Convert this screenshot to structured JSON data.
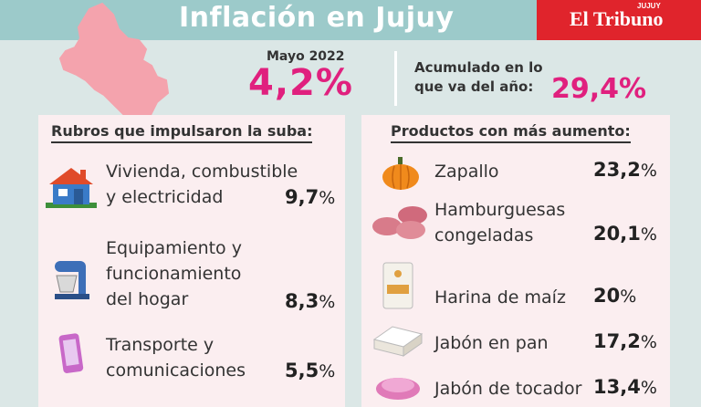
{
  "header": {
    "title": "Inflación en Jujuy"
  },
  "brand": {
    "name": "El Tribuno",
    "superscript": "JUJUY"
  },
  "monthly": {
    "label": "Mayo 2022",
    "value": "4,2",
    "unit": "%"
  },
  "accumulated": {
    "line1": "Acumulado en lo",
    "line2": "que va del año:",
    "value": "29,4%"
  },
  "left_panel": {
    "title": "Rubros que impulsaron la suba:",
    "items": [
      {
        "icon": "house-icon",
        "lines": [
          "Vivienda, combustible",
          "y electricidad"
        ],
        "value": "9,7",
        "unit": "%"
      },
      {
        "icon": "mixer-icon",
        "lines": [
          "Equipamiento y",
          "funcionamiento",
          "del hogar"
        ],
        "value": "8,3",
        "unit": "%"
      },
      {
        "icon": "phone-icon",
        "lines": [
          "Transporte y",
          "comunicaciones"
        ],
        "value": "5,5",
        "unit": "%"
      }
    ]
  },
  "right_panel": {
    "title": "Productos con más aumento:",
    "items": [
      {
        "icon": "pumpkin-icon",
        "lines": [
          "Zapallo"
        ],
        "value": "23,2",
        "unit": "%"
      },
      {
        "icon": "burger-patties-icon",
        "lines": [
          "Hamburguesas",
          "congeladas"
        ],
        "value": "20,1",
        "unit": "%"
      },
      {
        "icon": "flour-bag-icon",
        "lines": [
          "Harina de maíz"
        ],
        "value": "20",
        "unit": "%"
      },
      {
        "icon": "soap-bar-icon",
        "lines": [
          "Jabón en pan"
        ],
        "value": "17,2",
        "unit": "%"
      },
      {
        "icon": "soap-toilet-icon",
        "lines": [
          "Jabón de tocador"
        ],
        "value": "13,4",
        "unit": "%"
      }
    ]
  },
  "colors": {
    "header_bg": "#9ccaca",
    "accent": "#e0207e",
    "brand_bg": "#e0242c",
    "panel_bg": "#fbeef0",
    "map_fill": "#f4a3ad"
  }
}
